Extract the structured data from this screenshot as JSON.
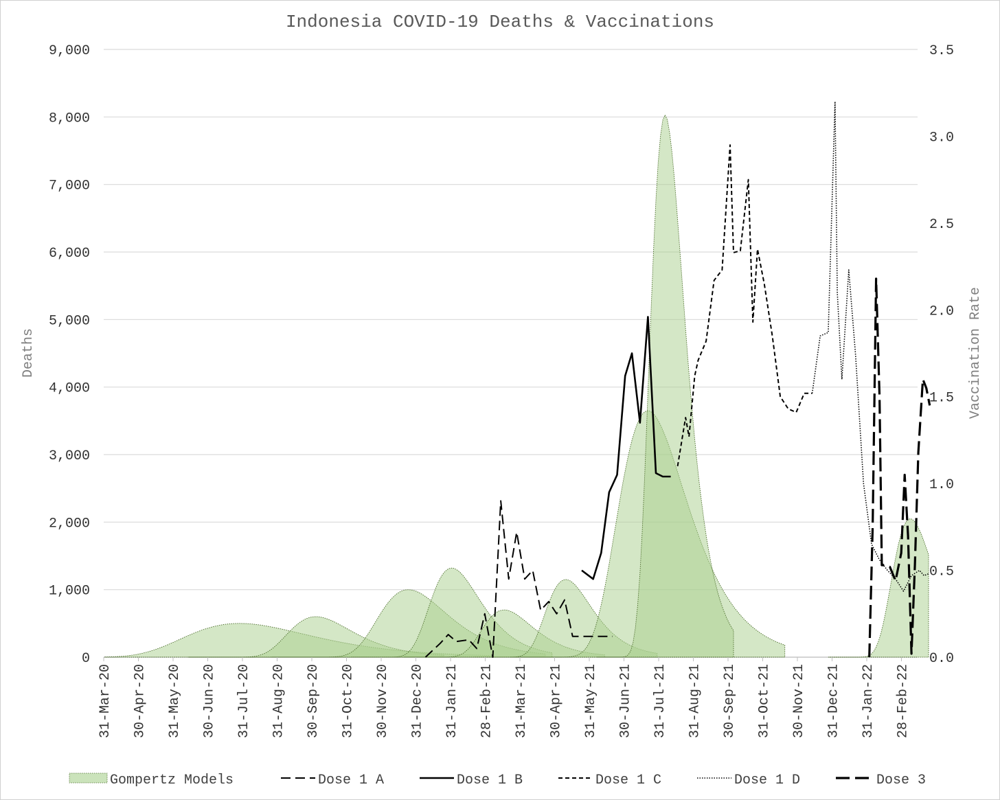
{
  "chart_data": {
    "type": "line",
    "title": "Indonesia COVID-19 Deaths & Vaccinations",
    "ylabel": "Deaths",
    "y2label": "Vaccination Rate",
    "xlabel": "",
    "ylim": [
      0,
      9000
    ],
    "y2lim": [
      0,
      3.5
    ],
    "y_ticks": [
      "0",
      "1,000",
      "2,000",
      "3,000",
      "4,000",
      "5,000",
      "6,000",
      "7,000",
      "8,000",
      "9,000"
    ],
    "y2_ticks": [
      "0.0",
      "0.5",
      "1.0",
      "1.5",
      "2.0",
      "2.5",
      "3.0",
      "3.5"
    ],
    "x_ticks": [
      "31-Mar-20",
      "30-Apr-20",
      "31-May-20",
      "30-Jun-20",
      "31-Jul-20",
      "31-Aug-20",
      "30-Sep-20",
      "31-Oct-20",
      "30-Nov-20",
      "31-Dec-20",
      "31-Jan-21",
      "28-Feb-21",
      "31-Mar-21",
      "30-Apr-21",
      "31-May-21",
      "30-Jun-21",
      "31-Jul-21",
      "31-Aug-21",
      "30-Sep-21",
      "31-Oct-21",
      "30-Nov-21",
      "31-Dec-21",
      "31-Jan-22",
      "28-Feb-22"
    ],
    "x_range": [
      "2020-03-31",
      "2022-03-25"
    ],
    "grid": true,
    "legend_position": "bottom",
    "colors": {
      "gompertz_fill": "#a9d08e",
      "gompertz_edge": "#4a6b2a",
      "lines": "#000000"
    },
    "gompertz_models": [
      {
        "peak": "2020-07-28",
        "height": 500,
        "width_days": 55
      },
      {
        "peak": "2020-10-03",
        "height": 600,
        "width_days": 28
      },
      {
        "peak": "2020-12-23",
        "height": 1000,
        "width_days": 30
      },
      {
        "peak": "2021-01-30",
        "height": 1320,
        "width_days": 22
      },
      {
        "peak": "2021-03-17",
        "height": 700,
        "width_days": 22
      },
      {
        "peak": "2021-05-10",
        "height": 1150,
        "width_days": 20
      },
      {
        "peak": "2021-07-21",
        "height": 3650,
        "width_days": 30
      },
      {
        "peak": "2021-08-05",
        "height": 8030,
        "width_days": 15
      },
      {
        "peak": "2022-03-08",
        "height": 2050,
        "width_days": 18
      }
    ],
    "series": [
      {
        "name": "Gompertz Models",
        "style": "area",
        "x": [],
        "values": []
      },
      {
        "name": "Dose 1 A",
        "style": "longdash",
        "axis": "secondary",
        "x": [
          "2021-01-07",
          "2021-01-20",
          "2021-01-27",
          "2021-02-03",
          "2021-02-14",
          "2021-02-21",
          "2021-02-28",
          "2021-03-07",
          "2021-03-14",
          "2021-03-21",
          "2021-03-28",
          "2021-04-04",
          "2021-04-11",
          "2021-04-18",
          "2021-04-25",
          "2021-05-02",
          "2021-05-09",
          "2021-05-16",
          "2021-05-23",
          "2021-05-30",
          "2021-06-06",
          "2021-06-13",
          "2021-06-20"
        ],
        "values": [
          0.0,
          0.08,
          0.13,
          0.09,
          0.1,
          0.05,
          0.25,
          0.0,
          0.9,
          0.45,
          0.72,
          0.45,
          0.5,
          0.27,
          0.32,
          0.25,
          0.33,
          0.12,
          0.12,
          0.12,
          0.12,
          0.12,
          0.12
        ]
      },
      {
        "name": "Dose 1 B",
        "style": "solid",
        "axis": "secondary",
        "x": [
          "2021-05-24",
          "2021-06-03",
          "2021-06-10",
          "2021-06-17",
          "2021-06-24",
          "2021-07-01",
          "2021-07-07",
          "2021-07-14",
          "2021-07-21",
          "2021-07-28",
          "2021-08-03",
          "2021-08-10"
        ],
        "values": [
          0.5,
          0.45,
          0.6,
          0.95,
          1.05,
          1.62,
          1.75,
          1.35,
          1.96,
          1.06,
          1.04,
          1.04
        ]
      },
      {
        "name": "Dose 1 C",
        "style": "shortdash",
        "axis": "secondary",
        "x": [
          "2021-08-16",
          "2021-08-23",
          "2021-08-26",
          "2021-08-31",
          "2021-09-03",
          "2021-09-10",
          "2021-09-17",
          "2021-09-24",
          "2021-10-01",
          "2021-10-04",
          "2021-10-10",
          "2021-10-17",
          "2021-10-21",
          "2021-10-25",
          "2021-10-31",
          "2021-11-07",
          "2021-11-14",
          "2021-11-21",
          "2021-11-28",
          "2021-12-05",
          "2021-12-12"
        ],
        "values": [
          1.1,
          1.38,
          1.27,
          1.62,
          1.71,
          1.82,
          2.17,
          2.23,
          2.95,
          2.33,
          2.34,
          2.75,
          1.93,
          2.35,
          2.15,
          1.85,
          1.5,
          1.43,
          1.41,
          1.52,
          1.52
        ]
      },
      {
        "name": "Dose 1 D",
        "style": "dotted",
        "axis": "secondary",
        "x": [
          "2021-12-12",
          "2021-12-19",
          "2021-12-26",
          "2022-01-01",
          "2022-01-03",
          "2022-01-07",
          "2022-01-13",
          "2022-01-19",
          "2022-01-26",
          "2022-02-02",
          "2022-02-09",
          "2022-02-16",
          "2022-02-23",
          "2022-03-02",
          "2022-03-09",
          "2022-03-16",
          "2022-03-20",
          "2022-03-24"
        ],
        "values": [
          1.52,
          1.85,
          1.87,
          3.2,
          2.1,
          1.6,
          2.23,
          1.74,
          1.0,
          0.65,
          0.56,
          0.5,
          0.45,
          0.38,
          0.47,
          0.5,
          0.47,
          0.48
        ]
      },
      {
        "name": "Dose 3",
        "style": "heavydash",
        "axis": "secondary",
        "x": [
          "2022-01-31",
          "2022-02-03",
          "2022-02-06",
          "2022-02-09",
          "2022-02-11",
          "2022-02-14",
          "2022-02-18",
          "2022-02-23",
          "2022-02-28",
          "2022-03-03",
          "2022-03-06",
          "2022-03-09",
          "2022-03-12",
          "2022-03-15",
          "2022-03-19",
          "2022-03-22",
          "2022-03-25"
        ],
        "values": [
          0.0,
          0.75,
          2.18,
          1.5,
          0.53,
          0.53,
          0.52,
          0.44,
          0.6,
          1.05,
          0.7,
          0.02,
          0.53,
          1.18,
          1.6,
          1.55,
          1.45
        ]
      }
    ]
  }
}
